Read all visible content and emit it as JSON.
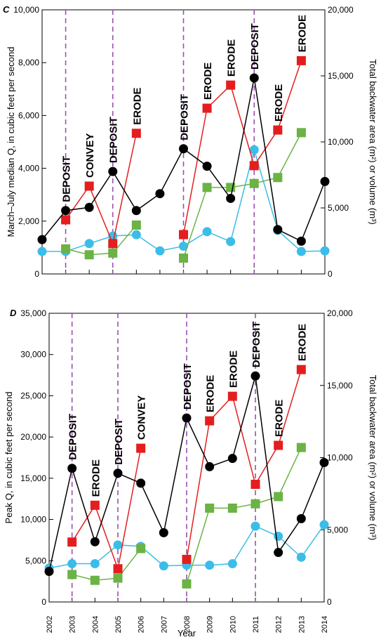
{
  "chart_data": [
    {
      "type": "line",
      "panel_label": "C",
      "ylabel_left": "March–July median Q, in cubic feet per second",
      "ylabel_right": "Total backwater area (m2) or volume (m3)",
      "ylim_left": [
        0,
        10000
      ],
      "ylim_right": [
        0,
        20000
      ],
      "yticks_left": [
        "0",
        "2,000",
        "4,000",
        "6,000",
        "8,000",
        "10,000"
      ],
      "yticks_right": [
        "0",
        "5,000",
        "10,000",
        "15,000",
        "20,000"
      ],
      "x": [
        2002,
        2003,
        2004,
        2005,
        2006,
        2007,
        2008,
        2009,
        2010,
        2011,
        2012,
        2013,
        2014
      ],
      "series": [
        {
          "axis": "left",
          "color": "#000000",
          "marker": "circle",
          "values": [
            1300,
            2400,
            2520,
            3880,
            2400,
            3040,
            4740,
            4080,
            2860,
            7420,
            1680,
            1240,
            3500
          ]
        },
        {
          "axis": "right",
          "color": "#e41e1e",
          "marker": "square",
          "values": [
            null,
            4100,
            6650,
            2300,
            10650,
            null,
            2980,
            12550,
            14300,
            8200,
            10900,
            16150,
            null
          ]
        },
        {
          "axis": "right",
          "color": "#6ab344",
          "marker": "square",
          "values": [
            null,
            1900,
            1450,
            1580,
            3700,
            null,
            1200,
            6550,
            6550,
            6850,
            7300,
            10700,
            null
          ]
        },
        {
          "axis": "right",
          "color": "#3bbde8",
          "marker": "circle",
          "values": [
            1700,
            1700,
            2300,
            2870,
            2970,
            1750,
            2100,
            3200,
            2450,
            9400,
            3300,
            1700,
            1750
          ]
        }
      ],
      "vlines": [
        2003,
        2005,
        2008,
        2011
      ],
      "vline_color": "#9b4fb0",
      "annotations": [
        {
          "x": 2003,
          "text": "DEPOSIT"
        },
        {
          "x": 2004,
          "text": "CONVEY"
        },
        {
          "x": 2005,
          "text": "DEPOSIT"
        },
        {
          "x": 2006,
          "text": "ERODE"
        },
        {
          "x": 2008,
          "text": "DEPOSIT"
        },
        {
          "x": 2009,
          "text": "ERODE"
        },
        {
          "x": 2010,
          "text": "ERODE"
        },
        {
          "x": 2011,
          "text": "DEPOSIT"
        },
        {
          "x": 2012,
          "text": "ERODE"
        },
        {
          "x": 2013,
          "text": "ERODE"
        }
      ]
    },
    {
      "type": "line",
      "panel_label": "D",
      "xlabel": "Year",
      "ylabel_left": "Peak Q, in cubic feet per second",
      "ylabel_right": "Total backwater area (m2) or volume (m3)",
      "ylim_left": [
        0,
        35000
      ],
      "ylim_right": [
        0,
        20000
      ],
      "yticks_left": [
        "0",
        "5,000",
        "10,000",
        "15,000",
        "20,000",
        "25,000",
        "30,000",
        "35,000"
      ],
      "yticks_right": [
        "0",
        "5,000",
        "10,000",
        "15,000",
        "20,000"
      ],
      "xticks": [
        "2002",
        "2003",
        "2004",
        "2005",
        "2006",
        "2007",
        "2008",
        "2009",
        "2010",
        "2011",
        "2012",
        "2013",
        "2014"
      ],
      "x": [
        2002,
        2003,
        2004,
        2005,
        2006,
        2007,
        2008,
        2009,
        2010,
        2011,
        2012,
        2013,
        2014
      ],
      "series": [
        {
          "axis": "left",
          "color": "#000000",
          "marker": "circle",
          "values": [
            3700,
            16200,
            7300,
            15600,
            14400,
            8400,
            22300,
            16400,
            17400,
            27400,
            6000,
            10100,
            16900
          ]
        },
        {
          "axis": "right",
          "color": "#e41e1e",
          "marker": "square",
          "values": [
            null,
            4150,
            6700,
            2300,
            10650,
            null,
            2950,
            12550,
            14250,
            8150,
            10850,
            16100,
            null
          ]
        },
        {
          "axis": "right",
          "color": "#6ab344",
          "marker": "square",
          "values": [
            null,
            1900,
            1500,
            1650,
            3700,
            null,
            1250,
            6500,
            6500,
            6800,
            7300,
            10700,
            null
          ]
        },
        {
          "axis": "right",
          "color": "#3bbde8",
          "marker": "circle",
          "values": [
            2350,
            2650,
            2650,
            3950,
            3850,
            2500,
            2550,
            2550,
            2650,
            5250,
            4550,
            3100,
            5350
          ]
        }
      ],
      "vlines": [
        2003,
        2005,
        2008,
        2011
      ],
      "vline_color": "#9b4fb0",
      "annotations": [
        {
          "x": 2003,
          "text": "DEPOSIT"
        },
        {
          "x": 2004,
          "text": "ERODE"
        },
        {
          "x": 2005,
          "text": "DEPOSIT"
        },
        {
          "x": 2006,
          "text": "CONVEY"
        },
        {
          "x": 2008,
          "text": "DEPOSIT"
        },
        {
          "x": 2009,
          "text": "ERODE"
        },
        {
          "x": 2010,
          "text": "ERODE"
        },
        {
          "x": 2011,
          "text": "DEPOSIT"
        },
        {
          "x": 2012,
          "text": "ERODE"
        },
        {
          "x": 2013,
          "text": "ERODE"
        }
      ]
    }
  ]
}
